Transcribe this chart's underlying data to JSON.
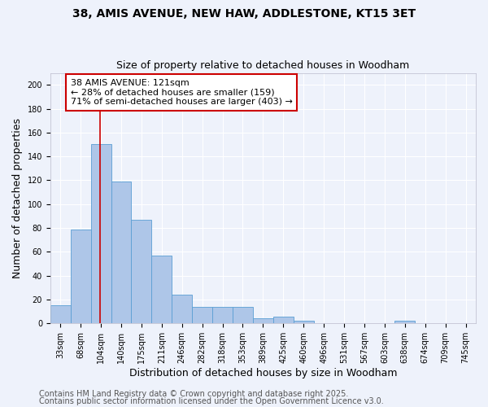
{
  "title_line1": "38, AMIS AVENUE, NEW HAW, ADDLESTONE, KT15 3ET",
  "title_line2": "Size of property relative to detached houses in Woodham",
  "xlabel": "Distribution of detached houses by size in Woodham",
  "ylabel": "Number of detached properties",
  "bin_labels": [
    "33sqm",
    "68sqm",
    "104sqm",
    "140sqm",
    "175sqm",
    "211sqm",
    "246sqm",
    "282sqm",
    "318sqm",
    "353sqm",
    "389sqm",
    "425sqm",
    "460sqm",
    "496sqm",
    "531sqm",
    "567sqm",
    "603sqm",
    "638sqm",
    "674sqm",
    "709sqm",
    "745sqm"
  ],
  "bar_values": [
    15,
    79,
    150,
    119,
    87,
    57,
    24,
    14,
    14,
    14,
    4,
    6,
    2,
    0,
    0,
    0,
    0,
    2,
    0,
    0,
    0
  ],
  "bar_color": "#aec6e8",
  "bar_edge_color": "#5a9fd4",
  "red_line_color": "#cc0000",
  "annotation_text": "38 AMIS AVENUE: 121sqm\n← 28% of detached houses are smaller (159)\n71% of semi-detached houses are larger (403) →",
  "annotation_box_color": "#ffffff",
  "annotation_box_edge": "#cc0000",
  "ylim": [
    0,
    210
  ],
  "yticks": [
    0,
    20,
    40,
    60,
    80,
    100,
    120,
    140,
    160,
    180,
    200
  ],
  "footer_line1": "Contains HM Land Registry data © Crown copyright and database right 2025.",
  "footer_line2": "Contains public sector information licensed under the Open Government Licence v3.0.",
  "background_color": "#eef2fb",
  "grid_color": "#ffffff",
  "title_fontsize": 10,
  "subtitle_fontsize": 9,
  "axis_label_fontsize": 9,
  "tick_fontsize": 7,
  "footer_fontsize": 7,
  "annotation_fontsize": 8
}
